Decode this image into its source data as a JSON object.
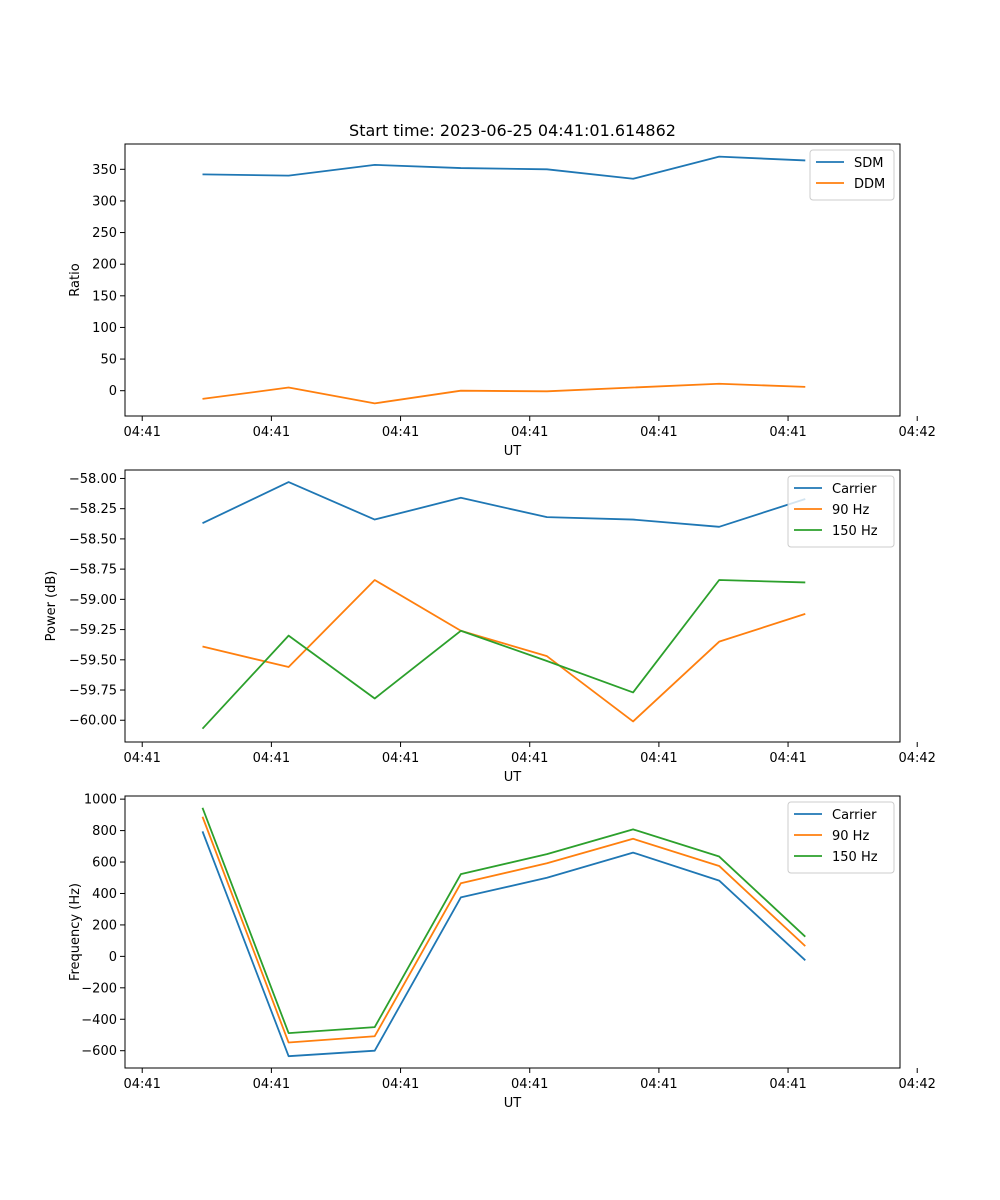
{
  "chart_data": [
    {
      "type": "line",
      "title": "Start time: 2023-06-25 04:41:01.614862",
      "xlabel": "UT",
      "ylabel": "Ratio",
      "xlim": [
        -0.2,
        8.8
      ],
      "ylim": [
        -40,
        390
      ],
      "x_ticks": [
        0,
        1.5,
        3,
        4.5,
        6,
        7.5,
        9
      ],
      "x_tick_labels": [
        "04:41",
        "04:41",
        "04:41",
        "04:41",
        "04:41",
        "04:41",
        "04:42"
      ],
      "y_ticks": [
        0,
        50,
        100,
        150,
        200,
        250,
        300,
        350
      ],
      "y_tick_labels": [
        "0",
        "50",
        "100",
        "150",
        "200",
        "250",
        "300",
        "350"
      ],
      "x": [
        0.7,
        1.7,
        2.7,
        3.7,
        4.7,
        5.7,
        6.7,
        7.7
      ],
      "series": [
        {
          "name": "SDM",
          "color": "#1f77b4",
          "values": [
            342,
            340,
            357,
            352,
            350,
            335,
            370,
            364
          ]
        },
        {
          "name": "DDM",
          "color": "#ff7f0e",
          "values": [
            -13,
            5,
            -20,
            0,
            -1,
            5,
            11,
            6
          ]
        }
      ],
      "legend": "top-right"
    },
    {
      "type": "line",
      "title": "",
      "xlabel": "UT",
      "ylabel": "Power (dB)",
      "xlim": [
        -0.2,
        8.8
      ],
      "ylim": [
        -60.18,
        -57.93
      ],
      "x_ticks": [
        0,
        1.5,
        3,
        4.5,
        6,
        7.5,
        9
      ],
      "x_tick_labels": [
        "04:41",
        "04:41",
        "04:41",
        "04:41",
        "04:41",
        "04:41",
        "04:42"
      ],
      "y_ticks": [
        -60.0,
        -59.75,
        -59.5,
        -59.25,
        -59.0,
        -58.75,
        -58.5,
        -58.25,
        -58.0
      ],
      "y_tick_labels": [
        "−60.00",
        "−59.75",
        "−59.50",
        "−59.25",
        "−59.00",
        "−58.75",
        "−58.50",
        "−58.25",
        "−58.00"
      ],
      "x": [
        0.7,
        1.7,
        2.7,
        3.7,
        4.7,
        5.7,
        6.7,
        7.7
      ],
      "series": [
        {
          "name": "Carrier",
          "color": "#1f77b4",
          "values": [
            -58.37,
            -58.03,
            -58.34,
            -58.16,
            -58.32,
            -58.34,
            -58.4,
            -58.17
          ]
        },
        {
          "name": "90 Hz",
          "color": "#ff7f0e",
          "values": [
            -59.39,
            -59.56,
            -58.84,
            -59.26,
            -59.47,
            -60.01,
            -59.35,
            -59.12
          ]
        },
        {
          "name": "150 Hz",
          "color": "#2ca02c",
          "values": [
            -60.07,
            -59.3,
            -59.82,
            -59.26,
            -59.51,
            -59.77,
            -58.84,
            -58.86
          ]
        }
      ],
      "legend": "top-right"
    },
    {
      "type": "line",
      "title": "",
      "xlabel": "UT",
      "ylabel": "Frequency (Hz)",
      "xlim": [
        -0.2,
        8.8
      ],
      "ylim": [
        -710,
        1020
      ],
      "x_ticks": [
        0,
        1.5,
        3,
        4.5,
        6,
        7.5,
        9
      ],
      "x_tick_labels": [
        "04:41",
        "04:41",
        "04:41",
        "04:41",
        "04:41",
        "04:41",
        "04:42"
      ],
      "y_ticks": [
        -600,
        -400,
        -200,
        0,
        200,
        400,
        600,
        800,
        1000
      ],
      "y_tick_labels": [
        "−600",
        "−400",
        "−200",
        "0",
        "200",
        "400",
        "600",
        "800",
        "1000"
      ],
      "x": [
        0.7,
        1.7,
        2.7,
        3.7,
        4.7,
        5.7,
        6.7,
        7.7
      ],
      "series": [
        {
          "name": "Carrier",
          "color": "#1f77b4",
          "values": [
            795,
            -635,
            -600,
            375,
            500,
            660,
            482,
            -25
          ]
        },
        {
          "name": "90 Hz",
          "color": "#ff7f0e",
          "values": [
            888,
            -548,
            -508,
            465,
            592,
            748,
            575,
            65
          ]
        },
        {
          "name": "150 Hz",
          "color": "#2ca02c",
          "values": [
            945,
            -488,
            -450,
            523,
            650,
            808,
            635,
            125
          ]
        }
      ],
      "legend": "top-right"
    }
  ]
}
